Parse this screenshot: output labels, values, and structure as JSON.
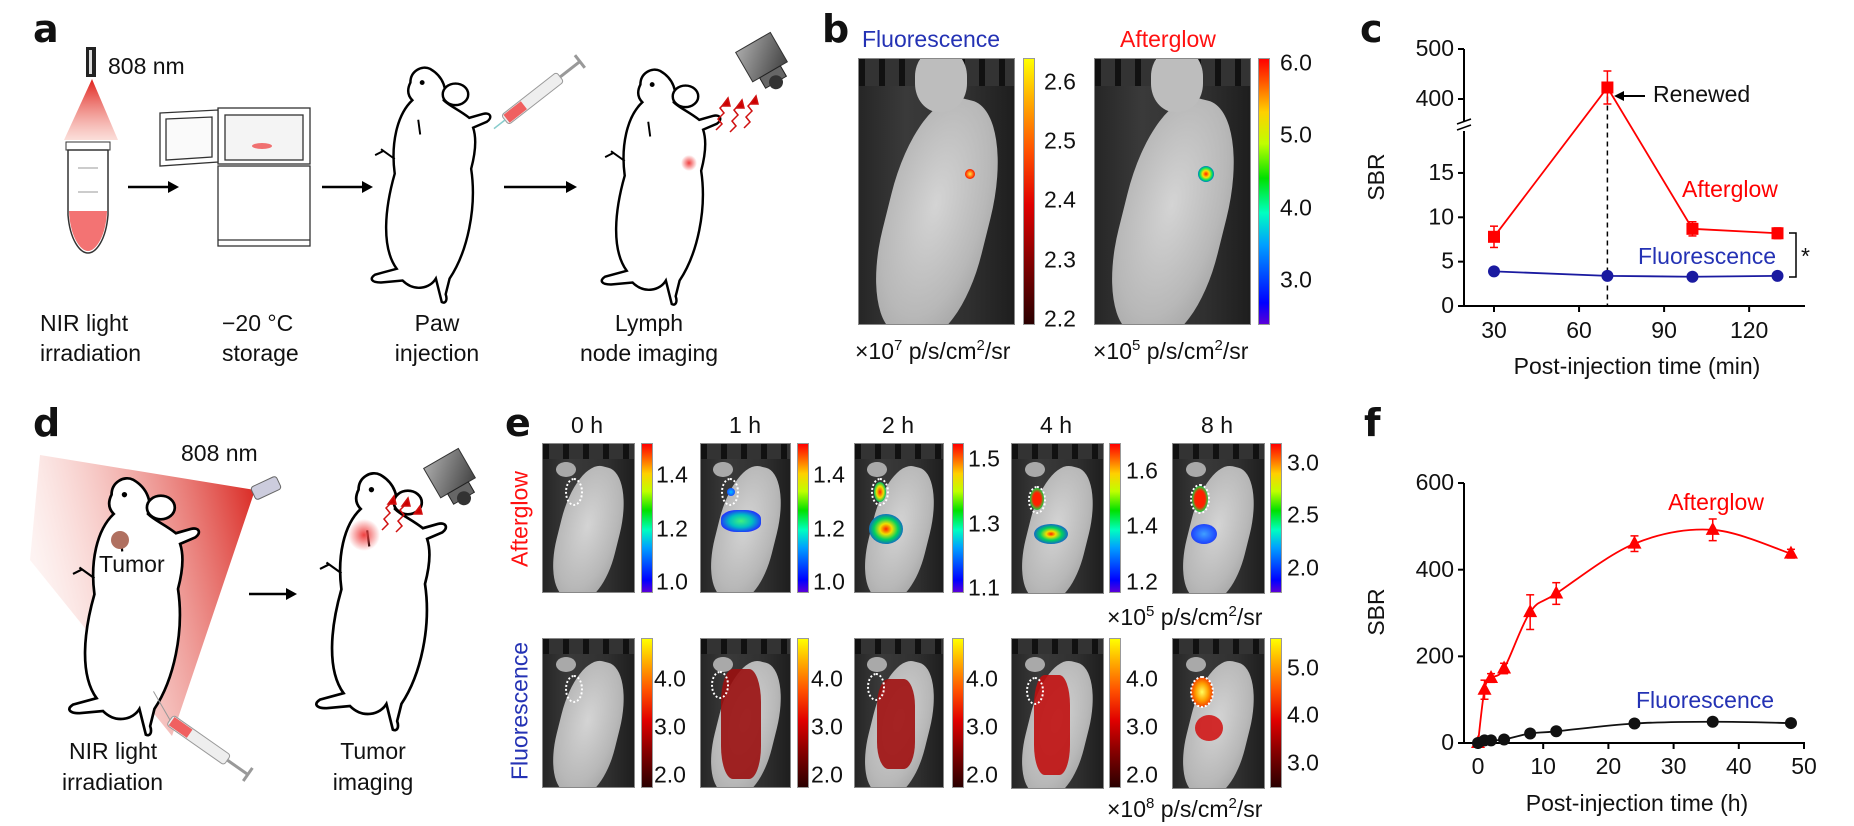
{
  "panel_labels": {
    "a": "a",
    "b": "b",
    "c": "c",
    "d": "d",
    "e": "e",
    "f": "f"
  },
  "panel_a": {
    "wavelength": "808 nm",
    "steps": [
      {
        "line1": "NIR light",
        "line2": "irradiation"
      },
      {
        "line1": "−20 °C",
        "line2": "storage"
      },
      {
        "line1": "Paw",
        "line2": "injection"
      },
      {
        "line1": "Lymph",
        "line2": "node imaging"
      }
    ]
  },
  "panel_b": {
    "titles": [
      "Fluorescence",
      "Afterglow"
    ],
    "colorbars": [
      {
        "map": "hot",
        "range": [
          2.19,
          2.64
        ],
        "ticks": [
          "2.6",
          "2.5",
          "2.4",
          "2.3",
          "2.2"
        ]
      },
      {
        "map": "jet",
        "range": [
          2.38,
          6.07
        ],
        "ticks": [
          "6.0",
          "5.0",
          "4.0",
          "3.0"
        ]
      }
    ],
    "units": [
      {
        "base": "×10",
        "exp": "7",
        "unit": " p/s/cm",
        "unit_exp": "2",
        "suffix": "/sr"
      },
      {
        "base": "×10",
        "exp": "5",
        "unit": " p/s/cm",
        "unit_exp": "2",
        "suffix": "/sr"
      }
    ]
  },
  "panel_d": {
    "wavelength": "808 nm",
    "tumor": "Tumor",
    "steps": [
      {
        "line1": "NIR light",
        "line2": "irradiation"
      },
      {
        "line1": "Tumor",
        "line2": "imaging"
      }
    ]
  },
  "panel_e": {
    "row_labels": [
      "Afterglow",
      "Fluorescence"
    ],
    "times": [
      "0 h",
      "1 h",
      "2 h",
      "4 h",
      "8 h"
    ],
    "afterglow_colorbars": [
      {
        "range": [
          0.96,
          1.52
        ],
        "ticks": [
          "1.4",
          "1.2",
          "1.0"
        ]
      },
      {
        "range": [
          0.96,
          1.52
        ],
        "ticks": [
          "1.4",
          "1.2",
          "1.0"
        ]
      },
      {
        "range": [
          1.085,
          1.55
        ],
        "ticks": [
          "1.5",
          "1.3",
          "1.1"
        ]
      },
      {
        "range": [
          1.16,
          1.7
        ],
        "ticks": [
          "1.6",
          "1.4",
          "1.2"
        ]
      },
      {
        "range": [
          1.76,
          3.19
        ],
        "ticks": [
          "3.0",
          "2.5",
          "2.0"
        ]
      }
    ],
    "fluorescence_colorbars": [
      {
        "range": [
          1.74,
          4.84
        ],
        "ticks": [
          "4.0",
          "3.0",
          "2.0"
        ]
      },
      {
        "range": [
          1.74,
          4.84
        ],
        "ticks": [
          "4.0",
          "3.0",
          "2.0"
        ]
      },
      {
        "range": [
          1.74,
          4.84
        ],
        "ticks": [
          "4.0",
          "3.0",
          "2.0"
        ]
      },
      {
        "range": [
          1.74,
          4.84
        ],
        "ticks": [
          "4.0",
          "3.0",
          "2.0"
        ]
      },
      {
        "range": [
          2.47,
          5.63
        ],
        "ticks": [
          "5.0",
          "4.0",
          "3.0"
        ]
      }
    ],
    "units": [
      {
        "base": "×10",
        "exp": "5",
        "unit": " p/s/cm",
        "unit_exp": "2",
        "suffix": "/sr"
      },
      {
        "base": "×10",
        "exp": "8",
        "unit": " p/s/cm",
        "unit_exp": "2",
        "suffix": "/sr"
      }
    ]
  },
  "colors": {
    "afterglow": "#ff0000",
    "fluorescence_c": "#1a1aa0",
    "fluorescence_f": "#111111",
    "fluorescence_text": "#2432b4"
  },
  "chart_data": [
    {
      "id": "c",
      "type": "line",
      "xlabel": "Post-injection time (min)",
      "ylabel": "SBR",
      "xlim": [
        15,
        135
      ],
      "ylim_lower": [
        0,
        19
      ],
      "ylim_upper": [
        350,
        500
      ],
      "y_axis_break": true,
      "xticks": [
        "30",
        "60",
        "90",
        "120"
      ],
      "xtick_values": [
        30,
        60,
        90,
        120
      ],
      "yticks": [
        "0",
        "5",
        "10",
        "15",
        "400",
        "500"
      ],
      "ytick_values": [
        0,
        5,
        10,
        15,
        400,
        500
      ],
      "annotation": "Renewed",
      "annotation_x": 70,
      "significance": "*",
      "series": [
        {
          "name": "Afterglow",
          "marker": "square",
          "x": [
            30,
            70,
            100,
            130
          ],
          "y": [
            7.8,
            423,
            8.7,
            8.2
          ],
          "err": [
            1.2,
            33,
            0.8,
            0.6
          ]
        },
        {
          "name": "Fluorescence",
          "marker": "circle",
          "x": [
            30,
            70,
            100,
            130
          ],
          "y": [
            3.9,
            3.4,
            3.3,
            3.4
          ],
          "err": [
            0.2,
            0.2,
            0.2,
            0.2
          ]
        }
      ],
      "legend": "inline-labels"
    },
    {
      "id": "f",
      "type": "line",
      "xlabel": "Post-injection time (h)",
      "ylabel": "SBR",
      "xlim": [
        -2,
        50
      ],
      "ylim": [
        0,
        600
      ],
      "xticks": [
        "0",
        "10",
        "20",
        "30",
        "40",
        "50"
      ],
      "xtick_values": [
        0,
        10,
        20,
        30,
        40,
        50
      ],
      "yticks": [
        "0",
        "200",
        "400",
        "600"
      ],
      "ytick_values": [
        0,
        200,
        400,
        600
      ],
      "series": [
        {
          "name": "Afterglow",
          "marker": "triangle",
          "x": [
            0,
            1,
            2,
            4,
            8,
            12,
            24,
            36,
            48
          ],
          "y": [
            0,
            123,
            150,
            172,
            302,
            345,
            460,
            492,
            437
          ],
          "err": [
            0,
            22,
            10,
            12,
            40,
            25,
            18,
            25,
            10
          ]
        },
        {
          "name": "Fluorescence",
          "marker": "circle",
          "x": [
            0,
            1,
            2,
            4,
            8,
            12,
            24,
            36,
            48
          ],
          "y": [
            0,
            6,
            6,
            8,
            22,
            27,
            45,
            49,
            46
          ],
          "err": [
            0,
            2,
            2,
            2,
            3,
            3,
            4,
            8,
            3
          ]
        }
      ],
      "legend": "inline-labels"
    }
  ]
}
